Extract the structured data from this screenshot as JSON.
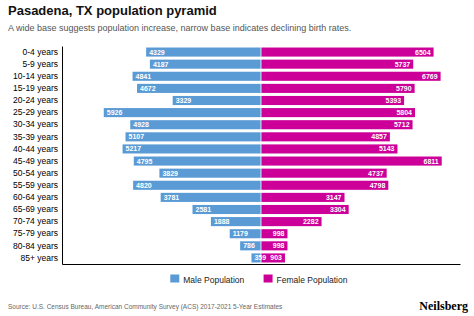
{
  "chart_data": {
    "type": "bar",
    "orientation": "horizontal",
    "title": "Pasadena, TX population pyramid",
    "subtitle": "A wide base suggests population increase, narrow base indicates declining birth rates.",
    "source": "Source: U.S. Census Bureau, American Community Survey (ACS) 2017-2021 5-Year Estimates",
    "annotations": [
      "Neilsberg"
    ],
    "categories": [
      "0-4 years",
      "5-9 years",
      "10-14 years",
      "15-19 years",
      "20-24 years",
      "25-29 years",
      "30-34 years",
      "35-39 years",
      "40-44 years",
      "45-49 years",
      "50-54 years",
      "55-59 years",
      "60-64 years",
      "65-69 years",
      "70-74 years",
      "75-79 years",
      "80-84 years",
      "85+ years"
    ],
    "series": [
      {
        "name": "Male Population",
        "color": "#5b9bd5",
        "values": [
          4329,
          4187,
          4841,
          4672,
          3329,
          5926,
          4928,
          5107,
          5217,
          4795,
          3829,
          4820,
          3781,
          2581,
          1888,
          1179,
          786,
          359
        ]
      },
      {
        "name": "Female Population",
        "color": "#cc0099",
        "values": [
          6504,
          5737,
          6769,
          5790,
          5393,
          5804,
          5712,
          4857,
          5143,
          6811,
          4737,
          4798,
          3147,
          3304,
          2282,
          998,
          998,
          903
        ]
      }
    ],
    "xlim": [
      -7500,
      7500
    ],
    "tick_labels": "y",
    "data_labels": true,
    "grid": false,
    "legend": "bottom"
  }
}
